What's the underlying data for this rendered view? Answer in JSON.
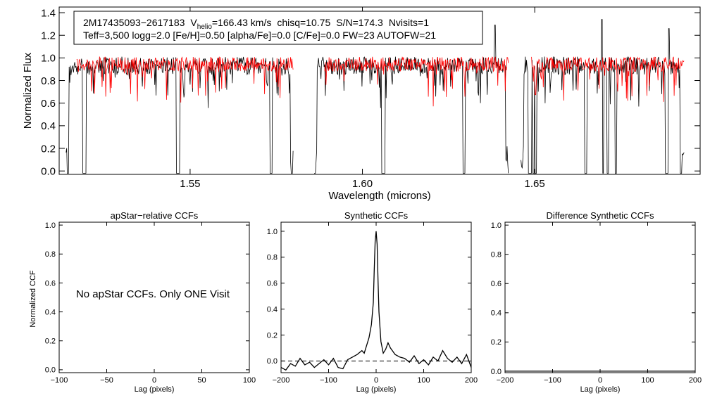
{
  "chart_data": [
    {
      "id": "spectrum",
      "type": "line",
      "title": "",
      "xlabel": "Wavelength (microns)",
      "ylabel": "Normalized Flux",
      "xlim": [
        1.512,
        1.698
      ],
      "ylim": [
        -0.03,
        1.45
      ],
      "xticks": [
        1.55,
        1.6,
        1.65
      ],
      "xtick_labels": [
        "1.55",
        "1.60",
        "1.65"
      ],
      "yticks": [
        0.0,
        0.2,
        0.4,
        0.6,
        0.8,
        1.0,
        1.2,
        1.4
      ],
      "ytick_labels": [
        "0.0",
        "0.2",
        "0.4",
        "0.6",
        "0.8",
        "1.0",
        "1.2",
        "1.4"
      ],
      "annotation": {
        "star": "2M17435093−2617183",
        "vhelio_label": "V",
        "vhelio_sub": "helio",
        "vhelio_value": "=166.43 km/s",
        "chisq": "chisq=10.75",
        "sn": "S/N=174.3",
        "nvisits": "Nvisits=1",
        "params": "Teff=3,500 logg=2.0 [Fe/H]=0.50 [alpha/Fe]=0.0 [C/Fe]=0.0 FW=23 AUTOFW=21"
      },
      "chips": [
        [
          1.514,
          1.58
        ],
        [
          1.586,
          1.6425
        ],
        [
          1.646,
          1.6935
        ]
      ],
      "deep_lines": [
        1.5145,
        1.519,
        1.5195,
        1.5462,
        1.5468,
        1.5735,
        1.5795,
        1.5862,
        1.6058,
        1.6063,
        1.6295,
        1.6425,
        1.6483,
        1.6488,
        1.6496,
        1.6503,
        1.6648,
        1.6698,
        1.6712,
        1.6735,
        1.6882,
        1.6888,
        1.6925
      ],
      "series": [
        {
          "name": "observed",
          "color": "#000000",
          "baseline": 0.9,
          "noise": 0.16
        },
        {
          "name": "model",
          "color": "#ff0000",
          "baseline": 0.92,
          "noise": 0.13
        }
      ],
      "spikes": [
        {
          "x": 1.6385,
          "y": 1.29
        },
        {
          "x": 1.6695,
          "y": 1.34
        },
        {
          "x": 1.689,
          "y": 1.26
        }
      ]
    },
    {
      "id": "apstar-ccf",
      "type": "line",
      "title": "apStar−relative CCFs",
      "xlabel": "Lag (pixels)",
      "ylabel": "Normalized CCF",
      "xlim": [
        -100,
        100
      ],
      "ylim": [
        -0.02,
        1.02
      ],
      "xticks": [
        -100,
        -50,
        0,
        50,
        100
      ],
      "xtick_labels": [
        "−100",
        "−50",
        "0",
        "50",
        "100"
      ],
      "yticks": [
        0.0,
        0.2,
        0.4,
        0.6,
        0.8,
        1.0
      ],
      "ytick_labels": [
        "0.0",
        "0.2",
        "0.4",
        "0.6",
        "0.8",
        "1.0"
      ],
      "message": "No apStar CCFs.  Only ONE Visit",
      "series": []
    },
    {
      "id": "synthetic-ccf",
      "type": "line",
      "title": "Synthetic CCFs",
      "xlabel": "Lag (pixels)",
      "ylabel": "",
      "xlim": [
        -200,
        200
      ],
      "ylim": [
        -0.09,
        1.07
      ],
      "xticks": [
        -200,
        -100,
        0,
        100,
        200
      ],
      "xtick_labels": [
        "−200",
        "−100",
        "0",
        "100",
        "200"
      ],
      "yticks": [
        0.0,
        0.2,
        0.4,
        0.6,
        0.8,
        1.0
      ],
      "ytick_labels": [
        "0.0",
        "0.2",
        "0.4",
        "0.6",
        "0.8",
        "1.0"
      ],
      "zero_line": true,
      "series": [
        {
          "name": "ccf",
          "x": [
            -200,
            -190,
            -180,
            -170,
            -160,
            -150,
            -140,
            -130,
            -120,
            -110,
            -100,
            -90,
            -80,
            -70,
            -60,
            -50,
            -40,
            -30,
            -25,
            -20,
            -15,
            -10,
            -6,
            -4,
            -2,
            0,
            2,
            4,
            6,
            10,
            15,
            20,
            25,
            30,
            40,
            50,
            60,
            70,
            80,
            90,
            100,
            110,
            120,
            130,
            140,
            150,
            160,
            170,
            180,
            190,
            200
          ],
          "y": [
            -0.05,
            -0.07,
            -0.02,
            -0.04,
            0.02,
            -0.03,
            -0.01,
            -0.05,
            -0.02,
            0.01,
            -0.03,
            0.02,
            -0.05,
            -0.06,
            0.01,
            0.03,
            0.05,
            0.08,
            0.06,
            0.12,
            0.18,
            0.28,
            0.45,
            0.7,
            0.92,
            1.0,
            0.9,
            0.62,
            0.38,
            0.15,
            0.06,
            0.09,
            0.14,
            0.1,
            0.05,
            0.03,
            0.02,
            -0.01,
            0.04,
            -0.02,
            0.01,
            -0.03,
            0.03,
            0.0,
            0.08,
            0.02,
            -0.01,
            0.03,
            -0.02,
            0.05,
            -0.05
          ]
        }
      ]
    },
    {
      "id": "difference-ccf",
      "type": "line",
      "title": "Difference Synthetic CCFs",
      "xlabel": "Lag (pixels)",
      "ylabel": "",
      "xlim": [
        -200,
        200
      ],
      "ylim": [
        -0.01,
        1.02
      ],
      "xticks": [
        -200,
        -100,
        0,
        100,
        200
      ],
      "xtick_labels": [
        "−200",
        "−100",
        "0",
        "100",
        "200"
      ],
      "yticks": [
        0.0,
        0.2,
        0.4,
        0.6,
        0.8,
        1.0
      ],
      "ytick_labels": [
        "0.0",
        "0.2",
        "0.4",
        "0.6",
        "0.8",
        "1.0"
      ],
      "series": [
        {
          "name": "difference",
          "x": [
            -200,
            200
          ],
          "y": [
            0.0,
            0.0
          ]
        }
      ]
    }
  ]
}
